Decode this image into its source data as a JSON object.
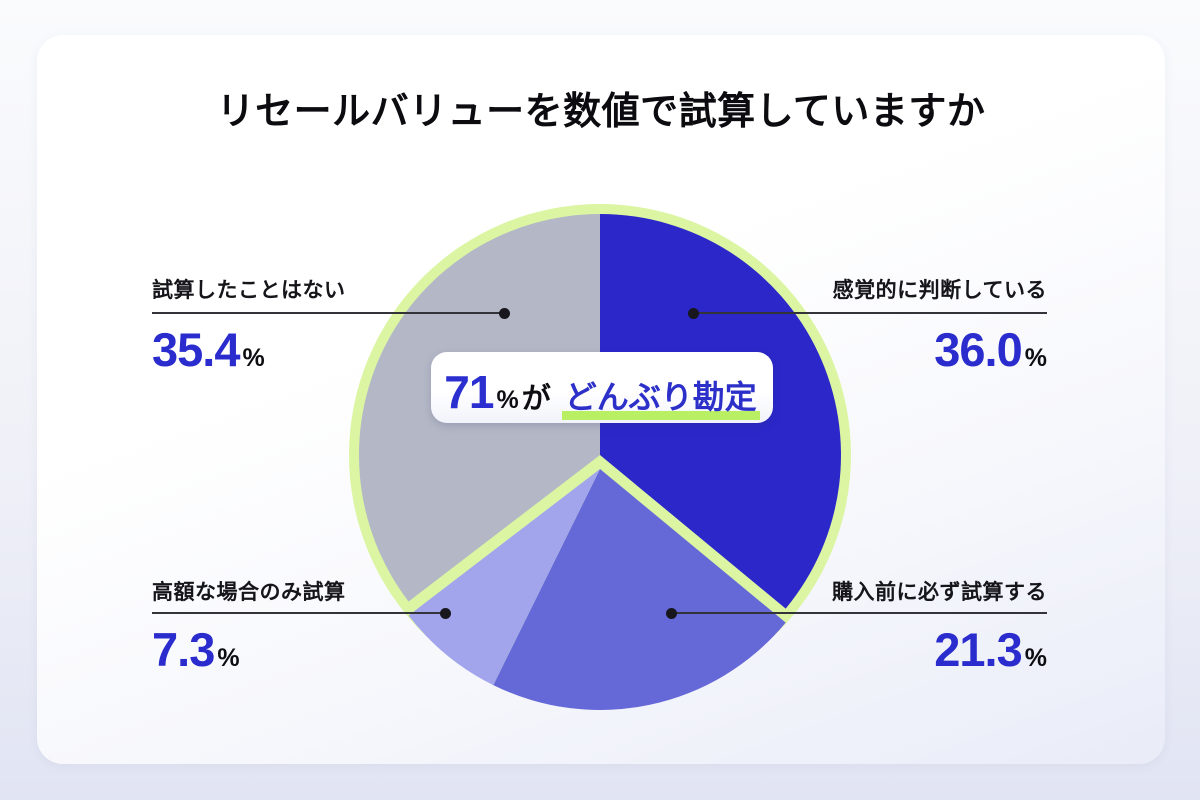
{
  "title": "リセールバリューを数値で試算していますか",
  "center_label": {
    "number": "71",
    "percent_sign": "%",
    "particle": "が",
    "highlight": "どんぶり勘定"
  },
  "callouts": {
    "top_left": {
      "name": "試算したことはない",
      "value": "35.4",
      "suffix": "%"
    },
    "top_right": {
      "name": "感覚的に判断している",
      "value": "36.0",
      "suffix": "%"
    },
    "bottom_left": {
      "name": "高額な場合のみ試算",
      "value": "7.3",
      "suffix": "%"
    },
    "bottom_right": {
      "name": "購入前に必ず試算する",
      "value": "21.3",
      "suffix": "%"
    }
  },
  "colors": {
    "accent_blue": "#2b2fd0",
    "highlight_lime": "#b9ef63",
    "ring_lime": "#dbf5a3",
    "text_dark": "#111116"
  },
  "chart_data": {
    "type": "pie",
    "title": "リセールバリューを数値で試算していますか",
    "start_angle_deg": 0,
    "direction": "clockwise",
    "total": 100,
    "segments": [
      {
        "label": "感覚的に判断している",
        "value": 36.0,
        "color": "#2b27c9",
        "exploded": false
      },
      {
        "label": "購入前に必ず試算する",
        "value": 21.3,
        "color": "#6569d8",
        "exploded": true
      },
      {
        "label": "高額な場合のみ試算",
        "value": 7.3,
        "color": "#a2a5ec",
        "exploded": true
      },
      {
        "label": "試算したことはない",
        "value": 35.4,
        "color": "#b4b8c6",
        "exploded": false
      }
    ],
    "ring_color": "#dbf5a3",
    "annotation": "71%がどんぶり勘定",
    "legend_position": "none",
    "grid": false
  }
}
